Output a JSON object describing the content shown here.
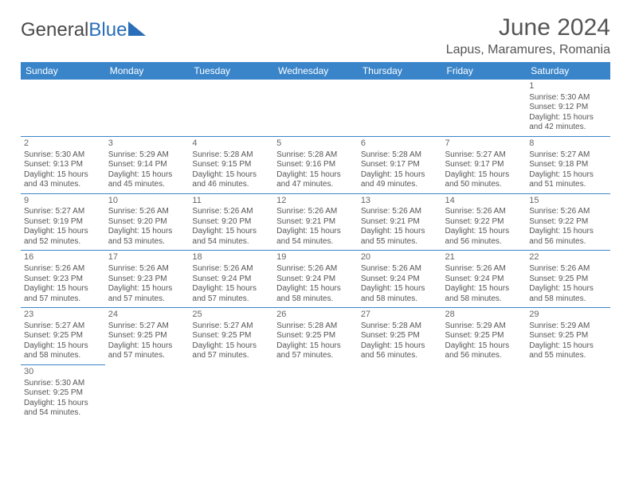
{
  "logo": {
    "text1": "General",
    "text2": "Blue"
  },
  "title": "June 2024",
  "location": "Lapus, Maramures, Romania",
  "colors": {
    "header_bg": "#3a85c9",
    "header_text": "#ffffff",
    "border": "#3a85c9",
    "body_text": "#555555",
    "logo_gray": "#4a4a4a",
    "logo_blue": "#2a6db8"
  },
  "weekdays": [
    "Sunday",
    "Monday",
    "Tuesday",
    "Wednesday",
    "Thursday",
    "Friday",
    "Saturday"
  ],
  "first_weekday_index": 6,
  "days": [
    {
      "n": 1,
      "sunrise": "5:30 AM",
      "sunset": "9:12 PM",
      "daylight": "15 hours and 42 minutes."
    },
    {
      "n": 2,
      "sunrise": "5:30 AM",
      "sunset": "9:13 PM",
      "daylight": "15 hours and 43 minutes."
    },
    {
      "n": 3,
      "sunrise": "5:29 AM",
      "sunset": "9:14 PM",
      "daylight": "15 hours and 45 minutes."
    },
    {
      "n": 4,
      "sunrise": "5:28 AM",
      "sunset": "9:15 PM",
      "daylight": "15 hours and 46 minutes."
    },
    {
      "n": 5,
      "sunrise": "5:28 AM",
      "sunset": "9:16 PM",
      "daylight": "15 hours and 47 minutes."
    },
    {
      "n": 6,
      "sunrise": "5:28 AM",
      "sunset": "9:17 PM",
      "daylight": "15 hours and 49 minutes."
    },
    {
      "n": 7,
      "sunrise": "5:27 AM",
      "sunset": "9:17 PM",
      "daylight": "15 hours and 50 minutes."
    },
    {
      "n": 8,
      "sunrise": "5:27 AM",
      "sunset": "9:18 PM",
      "daylight": "15 hours and 51 minutes."
    },
    {
      "n": 9,
      "sunrise": "5:27 AM",
      "sunset": "9:19 PM",
      "daylight": "15 hours and 52 minutes."
    },
    {
      "n": 10,
      "sunrise": "5:26 AM",
      "sunset": "9:20 PM",
      "daylight": "15 hours and 53 minutes."
    },
    {
      "n": 11,
      "sunrise": "5:26 AM",
      "sunset": "9:20 PM",
      "daylight": "15 hours and 54 minutes."
    },
    {
      "n": 12,
      "sunrise": "5:26 AM",
      "sunset": "9:21 PM",
      "daylight": "15 hours and 54 minutes."
    },
    {
      "n": 13,
      "sunrise": "5:26 AM",
      "sunset": "9:21 PM",
      "daylight": "15 hours and 55 minutes."
    },
    {
      "n": 14,
      "sunrise": "5:26 AM",
      "sunset": "9:22 PM",
      "daylight": "15 hours and 56 minutes."
    },
    {
      "n": 15,
      "sunrise": "5:26 AM",
      "sunset": "9:22 PM",
      "daylight": "15 hours and 56 minutes."
    },
    {
      "n": 16,
      "sunrise": "5:26 AM",
      "sunset": "9:23 PM",
      "daylight": "15 hours and 57 minutes."
    },
    {
      "n": 17,
      "sunrise": "5:26 AM",
      "sunset": "9:23 PM",
      "daylight": "15 hours and 57 minutes."
    },
    {
      "n": 18,
      "sunrise": "5:26 AM",
      "sunset": "9:24 PM",
      "daylight": "15 hours and 57 minutes."
    },
    {
      "n": 19,
      "sunrise": "5:26 AM",
      "sunset": "9:24 PM",
      "daylight": "15 hours and 58 minutes."
    },
    {
      "n": 20,
      "sunrise": "5:26 AM",
      "sunset": "9:24 PM",
      "daylight": "15 hours and 58 minutes."
    },
    {
      "n": 21,
      "sunrise": "5:26 AM",
      "sunset": "9:24 PM",
      "daylight": "15 hours and 58 minutes."
    },
    {
      "n": 22,
      "sunrise": "5:26 AM",
      "sunset": "9:25 PM",
      "daylight": "15 hours and 58 minutes."
    },
    {
      "n": 23,
      "sunrise": "5:27 AM",
      "sunset": "9:25 PM",
      "daylight": "15 hours and 58 minutes."
    },
    {
      "n": 24,
      "sunrise": "5:27 AM",
      "sunset": "9:25 PM",
      "daylight": "15 hours and 57 minutes."
    },
    {
      "n": 25,
      "sunrise": "5:27 AM",
      "sunset": "9:25 PM",
      "daylight": "15 hours and 57 minutes."
    },
    {
      "n": 26,
      "sunrise": "5:28 AM",
      "sunset": "9:25 PM",
      "daylight": "15 hours and 57 minutes."
    },
    {
      "n": 27,
      "sunrise": "5:28 AM",
      "sunset": "9:25 PM",
      "daylight": "15 hours and 56 minutes."
    },
    {
      "n": 28,
      "sunrise": "5:29 AM",
      "sunset": "9:25 PM",
      "daylight": "15 hours and 56 minutes."
    },
    {
      "n": 29,
      "sunrise": "5:29 AM",
      "sunset": "9:25 PM",
      "daylight": "15 hours and 55 minutes."
    },
    {
      "n": 30,
      "sunrise": "5:30 AM",
      "sunset": "9:25 PM",
      "daylight": "15 hours and 54 minutes."
    }
  ],
  "labels": {
    "sunrise": "Sunrise:",
    "sunset": "Sunset:",
    "daylight": "Daylight:"
  }
}
